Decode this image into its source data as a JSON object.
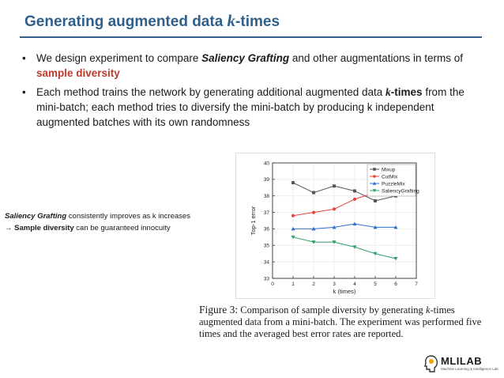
{
  "header": {
    "title_pre": "Generating augmented data ",
    "title_k": "k",
    "title_post": "-times"
  },
  "bullets": {
    "b1": {
      "bullet": "•",
      "pre": "We design experiment to compare ",
      "emph": "Saliency Grafting",
      "mid": " and other augmentations in terms of ",
      "red": "sample diversity"
    },
    "b2": {
      "bullet": "•",
      "pre": "Each method trains the network by generating additional augmented data ",
      "k": "k",
      "ktimes": "-times",
      "post": " from the mini-batch; each method tries to diversify the mini-batch by producing k independent augmented batches with its own randomness"
    }
  },
  "side_note": {
    "emph": "Saliency Grafting",
    "line1_post": " consistently improves as k increases",
    "arrow": "→",
    "bold": "Sample diversity",
    "line2_post": " can be guaranteed innocuity"
  },
  "figure": {
    "label": "Figure 3:",
    "pre": " Comparison of sample diversity by generating ",
    "k": "k",
    "post": "-times augmented data from a mini-batch. The experiment was performed five times and the averaged best error rates are reported."
  },
  "logo": {
    "text": "MLILAB",
    "sub": "Machine Learning & Intelligence Lab"
  },
  "chart_data": {
    "type": "line",
    "xlabel": "k (times)",
    "ylabel": "Top-1 error",
    "xlim": [
      0,
      7
    ],
    "ylim": [
      33,
      40
    ],
    "xticks": [
      0,
      1,
      2,
      3,
      4,
      5,
      6,
      7
    ],
    "yticks": [
      33,
      34,
      35,
      36,
      37,
      38,
      39,
      40
    ],
    "x": [
      1,
      2,
      3,
      4,
      5,
      6
    ],
    "grid": true,
    "legend_position": "top-right",
    "series": [
      {
        "name": "Mixup",
        "color": "#555555",
        "marker": "square",
        "values": [
          38.8,
          38.2,
          38.6,
          38.3,
          37.7,
          38.0
        ]
      },
      {
        "name": "CutMix",
        "color": "#e8413c",
        "marker": "circle",
        "values": [
          36.8,
          37.0,
          37.2,
          37.8,
          38.2,
          38.2
        ]
      },
      {
        "name": "PuzzleMix",
        "color": "#2e6fd6",
        "marker": "triangle-up",
        "values": [
          36.0,
          36.0,
          36.1,
          36.3,
          36.1,
          36.1
        ]
      },
      {
        "name": "SaliencyGrafting",
        "color": "#2fa06a",
        "marker": "triangle-down",
        "values": [
          35.5,
          35.2,
          35.2,
          34.9,
          34.5,
          34.2
        ]
      }
    ]
  }
}
